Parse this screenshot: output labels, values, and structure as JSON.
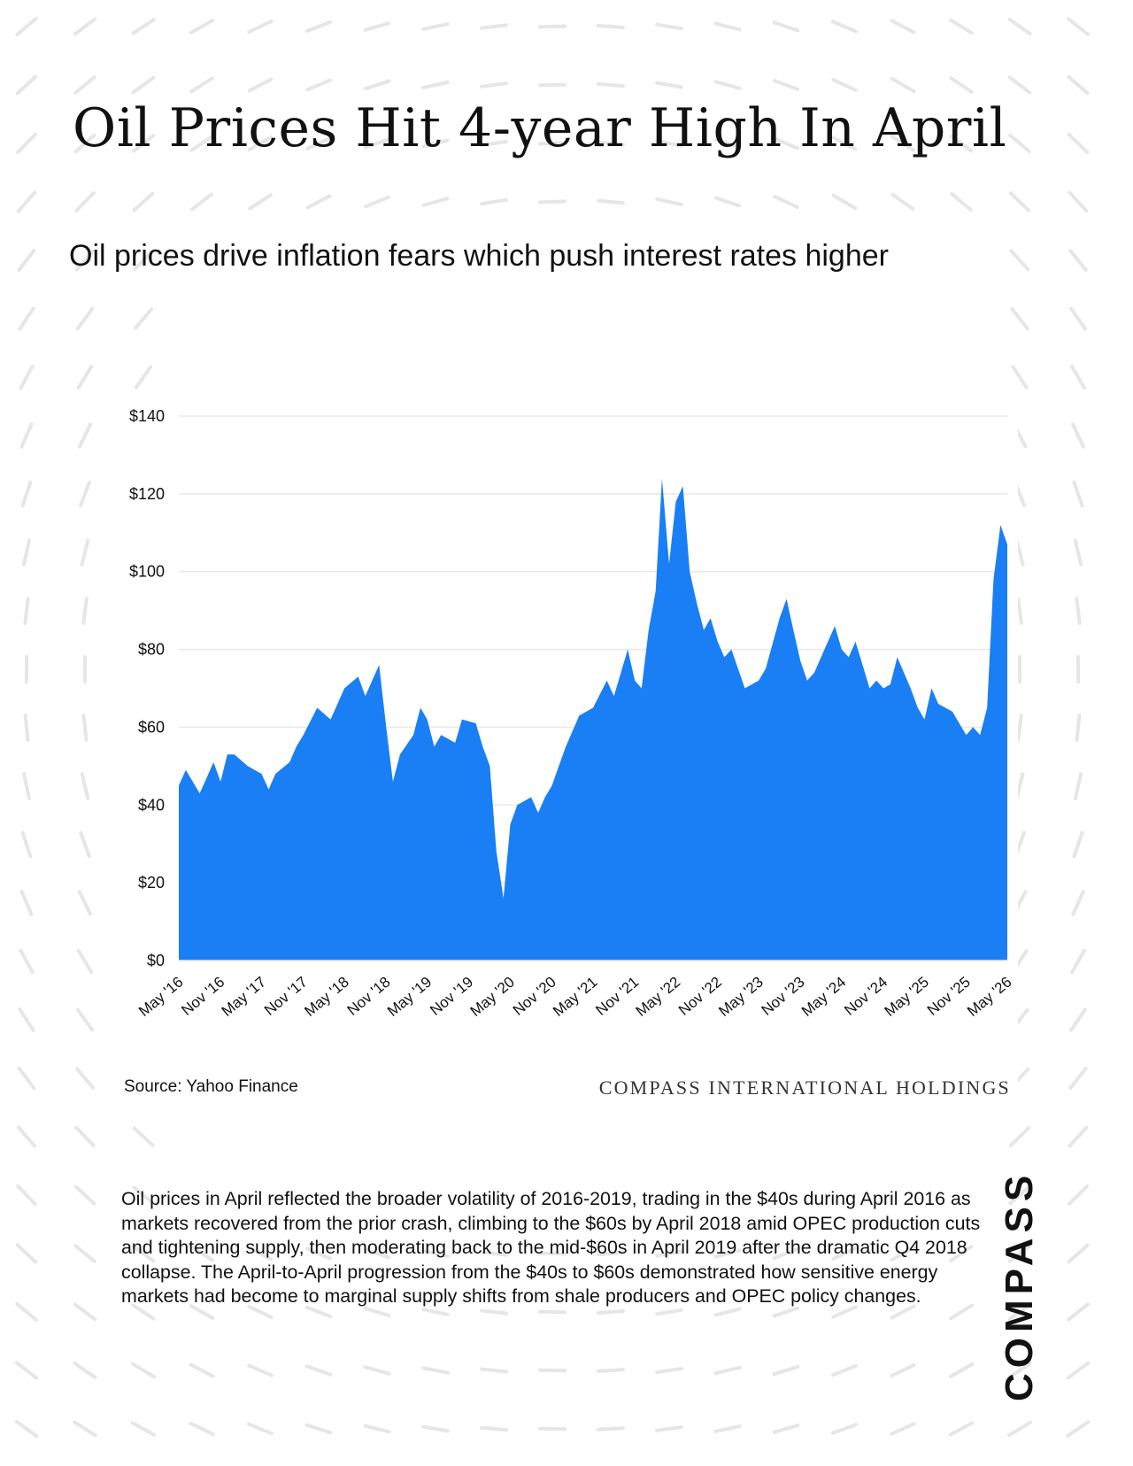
{
  "page": {
    "title": "Oil Prices Hit 4-year High In April",
    "subtitle": "Oil prices drive inflation fears which push interest rates higher",
    "source": "Source: Yahoo Finance",
    "holding_name": "COMPASS INTERNATIONAL HOLDINGS",
    "body": "Oil prices in April reflected the broader volatility of 2016-2019, trading in the $40s during April 2016 as markets recovered from the prior crash, climbing to the $60s by April 2018 amid OPEC production cuts and tightening supply, then moderating back to the mid-$60s in April 2019 after the dramatic Q4 2018 collapse. The April-to-April progression from the $40s to $60s demonstrated how sensitive energy markets had become to marginal supply shifts from shale producers and OPEC policy changes.",
    "brand": "COMPASS"
  },
  "colors": {
    "fill": "#1a7ff5",
    "grid": "#e8e8e8",
    "text": "#111111",
    "background_pattern": "#e6e6e6"
  },
  "chart_data": {
    "type": "area",
    "xlabel": "",
    "ylabel": "",
    "ylim": [
      0,
      140
    ],
    "yticks": [
      "$0",
      "$20",
      "$40",
      "$60",
      "$80",
      "$100",
      "$120",
      "$140"
    ],
    "x_tick_labels": [
      "May '16",
      "Nov '16",
      "May '17",
      "Nov '17",
      "May '18",
      "Nov '18",
      "May '19",
      "Nov '19",
      "May '20",
      "Nov '20",
      "May '21",
      "Nov '21",
      "May '22",
      "Nov '22",
      "May '23",
      "Nov '23",
      "May '24",
      "Nov '24",
      "May '25",
      "Nov '25",
      "May '26"
    ],
    "grid": "horizontal",
    "series": [
      {
        "x": [
          "2016-05",
          "2016-06",
          "2016-08",
          "2016-09",
          "2016-10",
          "2016-11",
          "2016-12",
          "2017-01",
          "2017-03",
          "2017-05",
          "2017-06",
          "2017-07",
          "2017-09",
          "2017-10",
          "2017-11",
          "2018-01",
          "2018-03",
          "2018-05",
          "2018-07",
          "2018-08",
          "2018-10",
          "2018-11",
          "2018-12",
          "2019-01",
          "2019-03",
          "2019-04",
          "2019-05",
          "2019-06",
          "2019-07",
          "2019-09",
          "2019-10",
          "2019-12",
          "2020-01",
          "2020-02",
          "2020-03",
          "2020-04",
          "2020-05",
          "2020-06",
          "2020-08",
          "2020-09",
          "2020-10",
          "2020-11",
          "2020-12",
          "2021-01",
          "2021-03",
          "2021-05",
          "2021-07",
          "2021-08",
          "2021-10",
          "2021-11",
          "2021-12",
          "2022-01",
          "2022-02",
          "2022-03",
          "2022-04",
          "2022-05",
          "2022-06",
          "2022-07",
          "2022-08",
          "2022-09",
          "2022-10",
          "2022-11",
          "2022-12",
          "2023-01",
          "2023-03",
          "2023-05",
          "2023-06",
          "2023-08",
          "2023-09",
          "2023-10",
          "2023-11",
          "2023-12",
          "2024-01",
          "2024-03",
          "2024-04",
          "2024-05",
          "2024-06",
          "2024-07",
          "2024-08",
          "2024-09",
          "2024-10",
          "2024-11",
          "2024-12",
          "2025-01",
          "2025-03",
          "2025-04",
          "2025-05",
          "2025-06",
          "2025-07",
          "2025-09",
          "2025-10",
          "2025-11",
          "2025-12",
          "2026-01",
          "2026-02",
          "2026-03",
          "2026-04",
          "2026-05"
        ],
        "values": [
          45,
          49,
          43,
          47,
          51,
          46,
          53,
          53,
          50,
          48,
          44,
          48,
          51,
          55,
          58,
          65,
          62,
          70,
          73,
          68,
          76,
          60,
          46,
          53,
          58,
          65,
          62,
          55,
          58,
          56,
          62,
          61,
          55,
          50,
          28,
          16,
          35,
          40,
          42,
          38,
          42,
          45,
          50,
          55,
          63,
          65,
          72,
          68,
          80,
          72,
          70,
          85,
          95,
          124,
          102,
          118,
          122,
          100,
          92,
          85,
          88,
          82,
          78,
          80,
          70,
          72,
          75,
          88,
          93,
          85,
          77,
          72,
          74,
          82,
          86,
          80,
          78,
          82,
          76,
          70,
          72,
          70,
          71,
          78,
          70,
          65,
          62,
          70,
          66,
          64,
          61,
          58,
          60,
          58,
          65,
          98,
          112,
          107
        ]
      }
    ]
  }
}
